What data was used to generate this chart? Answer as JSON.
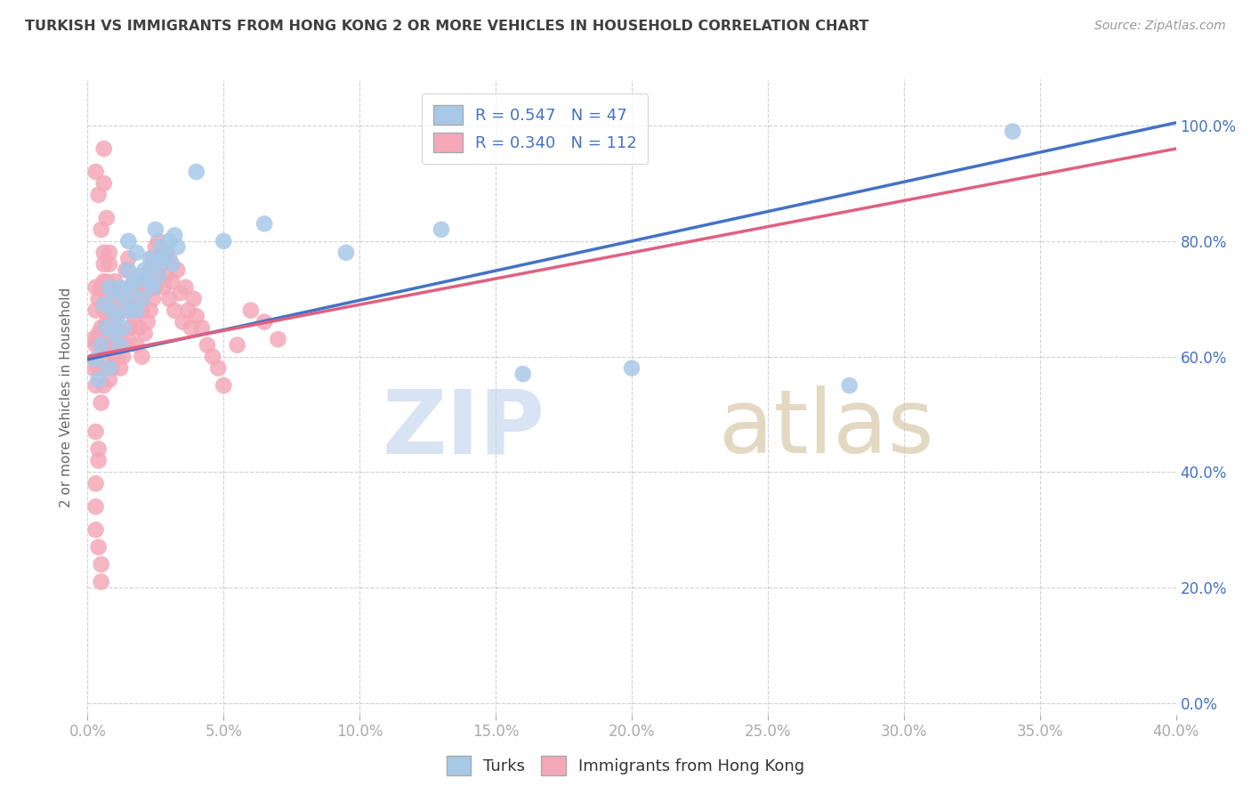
{
  "title": "TURKISH VS IMMIGRANTS FROM HONG KONG 2 OR MORE VEHICLES IN HOUSEHOLD CORRELATION CHART",
  "source": "Source: ZipAtlas.com",
  "ylabel_label": "2 or more Vehicles in Household",
  "xlim": [
    0.0,
    0.4
  ],
  "ylim": [
    -0.02,
    1.08
  ],
  "blue_R": 0.547,
  "blue_N": 47,
  "pink_R": 0.34,
  "pink_N": 112,
  "blue_color": "#a8c8e8",
  "pink_color": "#f4a8b8",
  "blue_line_color": "#4472c4",
  "pink_line_color": "#e06080",
  "legend_text_color": "#4472c4",
  "title_color": "#404040",
  "watermark_zip_color": "#c8d8f0",
  "watermark_atlas_color": "#d8c8b0",
  "axis_label_color": "#4472c4",
  "grid_color": "#cccccc",
  "blue_trend_x": [
    0.0,
    0.4
  ],
  "blue_trend_y": [
    0.595,
    1.005
  ],
  "pink_trend_x": [
    0.0,
    0.4
  ],
  "pink_trend_y": [
    0.6,
    0.96
  ],
  "blue_scatter_x": [
    0.003,
    0.004,
    0.005,
    0.006,
    0.007,
    0.008,
    0.008,
    0.009,
    0.01,
    0.01,
    0.011,
    0.012,
    0.012,
    0.013,
    0.014,
    0.015,
    0.015,
    0.016,
    0.017,
    0.018,
    0.018,
    0.019,
    0.02,
    0.021,
    0.022,
    0.023,
    0.024,
    0.025,
    0.026,
    0.027,
    0.028,
    0.029,
    0.03,
    0.031,
    0.032,
    0.033,
    0.34,
    0.015,
    0.025,
    0.04,
    0.05,
    0.065,
    0.095,
    0.13,
    0.16,
    0.2,
    0.28
  ],
  "blue_scatter_y": [
    0.595,
    0.56,
    0.62,
    0.69,
    0.65,
    0.72,
    0.58,
    0.68,
    0.64,
    0.71,
    0.67,
    0.72,
    0.62,
    0.65,
    0.7,
    0.68,
    0.75,
    0.72,
    0.73,
    0.68,
    0.78,
    0.74,
    0.7,
    0.75,
    0.73,
    0.77,
    0.72,
    0.76,
    0.74,
    0.79,
    0.77,
    0.78,
    0.8,
    0.76,
    0.81,
    0.79,
    0.99,
    0.8,
    0.82,
    0.92,
    0.8,
    0.83,
    0.78,
    0.82,
    0.57,
    0.58,
    0.55
  ],
  "pink_scatter_x": [
    0.002,
    0.002,
    0.003,
    0.003,
    0.003,
    0.003,
    0.004,
    0.004,
    0.004,
    0.005,
    0.005,
    0.005,
    0.006,
    0.006,
    0.006,
    0.007,
    0.007,
    0.007,
    0.008,
    0.008,
    0.008,
    0.008,
    0.009,
    0.009,
    0.009,
    0.01,
    0.01,
    0.01,
    0.011,
    0.011,
    0.012,
    0.012,
    0.012,
    0.013,
    0.013,
    0.014,
    0.014,
    0.014,
    0.015,
    0.015,
    0.015,
    0.016,
    0.016,
    0.017,
    0.017,
    0.018,
    0.018,
    0.019,
    0.019,
    0.02,
    0.02,
    0.021,
    0.021,
    0.022,
    0.022,
    0.023,
    0.023,
    0.024,
    0.024,
    0.025,
    0.025,
    0.026,
    0.026,
    0.027,
    0.028,
    0.028,
    0.029,
    0.03,
    0.03,
    0.031,
    0.032,
    0.033,
    0.034,
    0.035,
    0.036,
    0.037,
    0.038,
    0.039,
    0.04,
    0.042,
    0.044,
    0.046,
    0.048,
    0.05,
    0.055,
    0.06,
    0.065,
    0.07,
    0.003,
    0.004,
    0.005,
    0.006,
    0.006,
    0.007,
    0.008,
    0.003,
    0.004,
    0.004,
    0.003,
    0.003,
    0.003,
    0.004,
    0.005,
    0.005,
    0.006,
    0.006,
    0.006,
    0.007,
    0.007,
    0.008,
    0.008,
    0.009,
    0.009,
    0.01,
    0.01,
    0.011
  ],
  "pink_scatter_y": [
    0.63,
    0.58,
    0.62,
    0.55,
    0.68,
    0.72,
    0.58,
    0.64,
    0.7,
    0.52,
    0.65,
    0.72,
    0.55,
    0.62,
    0.68,
    0.6,
    0.66,
    0.72,
    0.56,
    0.63,
    0.7,
    0.76,
    0.58,
    0.65,
    0.71,
    0.6,
    0.67,
    0.73,
    0.62,
    0.69,
    0.58,
    0.64,
    0.71,
    0.6,
    0.68,
    0.62,
    0.69,
    0.75,
    0.63,
    0.7,
    0.77,
    0.65,
    0.72,
    0.67,
    0.73,
    0.62,
    0.69,
    0.65,
    0.72,
    0.6,
    0.68,
    0.64,
    0.71,
    0.66,
    0.73,
    0.68,
    0.75,
    0.7,
    0.77,
    0.72,
    0.79,
    0.74,
    0.8,
    0.76,
    0.72,
    0.78,
    0.74,
    0.7,
    0.77,
    0.73,
    0.68,
    0.75,
    0.71,
    0.66,
    0.72,
    0.68,
    0.65,
    0.7,
    0.67,
    0.65,
    0.62,
    0.6,
    0.58,
    0.55,
    0.62,
    0.68,
    0.66,
    0.63,
    0.92,
    0.88,
    0.82,
    0.96,
    0.9,
    0.84,
    0.78,
    0.47,
    0.44,
    0.42,
    0.38,
    0.34,
    0.3,
    0.27,
    0.24,
    0.21,
    0.73,
    0.76,
    0.78,
    0.7,
    0.73,
    0.67,
    0.7,
    0.65,
    0.68,
    0.62,
    0.65,
    0.6
  ]
}
